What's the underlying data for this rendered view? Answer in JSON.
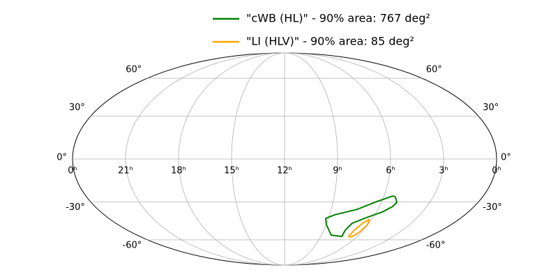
{
  "chart_data": {
    "type": "skymap",
    "xlim": [
      24,
      0
    ],
    "ylim": [
      -90,
      90
    ],
    "xticks": [
      {
        "value": 24,
        "label": "0ʰ"
      },
      {
        "value": 21,
        "label": "21ʰ"
      },
      {
        "value": 18,
        "label": "18ʰ"
      },
      {
        "value": 15,
        "label": "15ʰ"
      },
      {
        "value": 12,
        "label": "12ʰ"
      },
      {
        "value": 9,
        "label": "9ʰ"
      },
      {
        "value": 6,
        "label": "6ʰ"
      },
      {
        "value": 3,
        "label": "3ʰ"
      },
      {
        "value": 0,
        "label": "0ʰ"
      }
    ],
    "yticks": [
      {
        "value": -60,
        "label": "-60°"
      },
      {
        "value": -30,
        "label": "-30°"
      },
      {
        "value": 0,
        "label": "0°"
      },
      {
        "value": 30,
        "label": "30°"
      },
      {
        "value": 60,
        "label": "60°"
      }
    ],
    "grid": true,
    "series": [
      {
        "name": "\"cWB (HL)\" - 90% area: 767 deg²",
        "color": "#008000",
        "x": [
          5.3,
          5.04,
          5.16,
          5.62,
          6.45,
          7.19,
          7.37,
          7.26,
          8.21,
          8.99,
          9.19,
          8.66,
          7.33,
          6.31,
          5.47,
          5.3
        ],
        "y": [
          -26.3,
          -30.3,
          -33.4,
          -37.5,
          -41.8,
          -46.1,
          -51.7,
          -57.0,
          -55.9,
          -47.2,
          -42.3,
          -39.6,
          -35.5,
          -29.8,
          -25.8,
          -26.3
        ]
      },
      {
        "name": "\"LI (HLV)\" - 90% area: 85 deg²",
        "color": "#ffa500",
        "x": [
          6.16,
          6.03,
          6.16,
          6.45,
          6.71,
          6.67,
          6.45,
          6.16
        ],
        "y": [
          -42.8,
          -47.2,
          -53.5,
          -57.7,
          -56.8,
          -51.7,
          -46.1,
          -42.8
        ]
      }
    ]
  }
}
